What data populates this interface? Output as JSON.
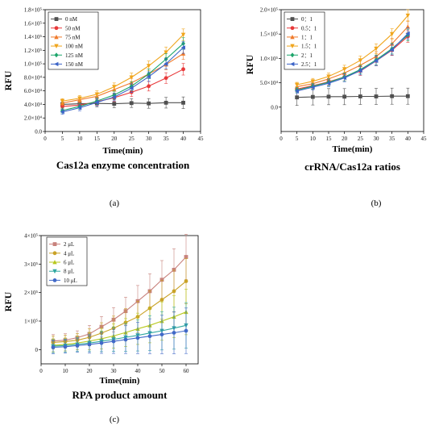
{
  "chart_data": [
    {
      "type": "line",
      "id": "a",
      "panel_label": "(a)",
      "title": "Cas12a enzyme concentration",
      "xlabel": "Time(min)",
      "ylabel": "RFU",
      "x": [
        5,
        10,
        15,
        20,
        25,
        30,
        35,
        40
      ],
      "xlim": [
        0,
        45
      ],
      "ylim": [
        0,
        180000
      ],
      "xticks": [
        "0",
        "5",
        "10",
        "15",
        "20",
        "25",
        "30",
        "35",
        "40",
        "45"
      ],
      "yticks": [
        "0.0",
        "2.0×10⁴",
        "4.0×10⁴",
        "6.0×10⁴",
        "8.0×10⁴",
        "1.0×10⁵",
        "1.2×10⁵",
        "1.4×10⁵",
        "1.6×10⁵",
        "1.8×10⁵"
      ],
      "legend": "top-left",
      "series": [
        {
          "name": "0 nM",
          "color": "#505050",
          "marker": "square",
          "values": [
            40000,
            41000,
            41500,
            41000,
            42000,
            41500,
            42500,
            42500
          ]
        },
        {
          "name": "50 nM",
          "color": "#e8393a",
          "marker": "circle",
          "values": [
            37000,
            39000,
            44000,
            50000,
            58000,
            67000,
            79000,
            92000
          ]
        },
        {
          "name": "75 nM",
          "color": "#f07a2a",
          "marker": "triangle",
          "values": [
            42000,
            47000,
            52000,
            62000,
            72000,
            85000,
            99000,
            115000
          ]
        },
        {
          "name": "100 nM",
          "color": "#f0a51c",
          "marker": "triangle-down",
          "values": [
            45000,
            49000,
            55000,
            66000,
            80000,
            97000,
            117000,
            143000
          ]
        },
        {
          "name": "125 nM",
          "color": "#1ba56a",
          "marker": "diamond",
          "values": [
            31000,
            37000,
            45000,
            54000,
            67000,
            85000,
            107000,
            130000
          ]
        },
        {
          "name": "150 nM",
          "color": "#3c64c8",
          "marker": "triangle-left",
          "values": [
            29000,
            35000,
            43000,
            51000,
            64000,
            81000,
            100000,
            124000
          ]
        }
      ]
    },
    {
      "type": "line",
      "id": "b",
      "panel_label": "(b)",
      "title": "crRNA/Cas12a ratios",
      "xlabel": "Time(min)",
      "ylabel": "RFU",
      "x": [
        5,
        10,
        15,
        20,
        25,
        30,
        35,
        40
      ],
      "xlim": [
        0,
        45
      ],
      "ylim": [
        -50000,
        200000
      ],
      "xticks": [
        "0",
        "5",
        "10",
        "15",
        "20",
        "25",
        "30",
        "35",
        "40",
        "45"
      ],
      "yticks": [
        "0.0",
        "5.0×10⁴",
        "1.0×10⁵",
        "1.5×10⁵",
        "2.0×10⁵"
      ],
      "legend": "top-left",
      "series": [
        {
          "name": "0：1",
          "color": "#505050",
          "marker": "square",
          "values": [
            20000,
            21000,
            21500,
            21500,
            22000,
            22000,
            22500,
            22500
          ]
        },
        {
          "name": "0.5：1",
          "color": "#e8393a",
          "marker": "circle",
          "values": [
            37000,
            44000,
            52000,
            62000,
            74000,
            95000,
            117000,
            145000
          ]
        },
        {
          "name": "1：1",
          "color": "#f07a2a",
          "marker": "triangle",
          "values": [
            42000,
            48000,
            58000,
            70000,
            86000,
            104000,
            130000,
            165000
          ]
        },
        {
          "name": "1.5：1",
          "color": "#f0a51c",
          "marker": "triangle-down",
          "values": [
            46000,
            53000,
            63000,
            78000,
            96000,
            120000,
            150000,
            188000
          ]
        },
        {
          "name": "2：1",
          "color": "#1ba56a",
          "marker": "diamond",
          "values": [
            35000,
            43000,
            51000,
            62000,
            77000,
            97000,
            120000,
            148000
          ]
        },
        {
          "name": "2.5：1",
          "color": "#3c64c8",
          "marker": "triangle-left",
          "values": [
            33000,
            41000,
            49000,
            60000,
            75000,
            95000,
            118000,
            151000
          ]
        }
      ]
    },
    {
      "type": "line",
      "id": "c",
      "panel_label": "(c)",
      "title": "RPA product amount",
      "xlabel": "Time(min)",
      "ylabel": "RFU",
      "x": [
        5,
        10,
        15,
        20,
        25,
        30,
        35,
        40,
        45,
        50,
        55,
        60
      ],
      "xlim": [
        0,
        65
      ],
      "ylim": [
        -50000,
        400000
      ],
      "xticks": [
        "0",
        "10",
        "20",
        "30",
        "40",
        "50",
        "60"
      ],
      "yticks": [
        "0",
        "1×10⁵",
        "2×10⁵",
        "3×10⁵",
        "4×10⁵"
      ],
      "legend": "top-left",
      "series": [
        {
          "name": "2 μL",
          "color": "#c8827c",
          "marker": "square",
          "values": [
            30000,
            33000,
            42000,
            55000,
            80000,
            105000,
            135000,
            170000,
            205000,
            245000,
            280000,
            325000
          ]
        },
        {
          "name": "4 μL",
          "color": "#c9a227",
          "marker": "circle",
          "values": [
            25000,
            28000,
            33000,
            43000,
            58000,
            75000,
            95000,
            115000,
            145000,
            175000,
            205000,
            240000
          ]
        },
        {
          "name": "6 μL",
          "color": "#b8c81e",
          "marker": "triangle",
          "values": [
            15000,
            18000,
            23000,
            30000,
            38000,
            48000,
            60000,
            73000,
            85000,
            100000,
            115000,
            132000
          ]
        },
        {
          "name": "8 μL",
          "color": "#2fa7a0",
          "marker": "triangle-down",
          "values": [
            12000,
            14000,
            18000,
            23000,
            29000,
            36000,
            43000,
            50000,
            58000,
            66000,
            75000,
            85000
          ]
        },
        {
          "name": "10 μL",
          "color": "#4169c8",
          "marker": "circle",
          "values": [
            8000,
            10000,
            14000,
            18000,
            23000,
            29000,
            35000,
            41000,
            47000,
            53000,
            59000,
            66000
          ]
        }
      ]
    }
  ]
}
